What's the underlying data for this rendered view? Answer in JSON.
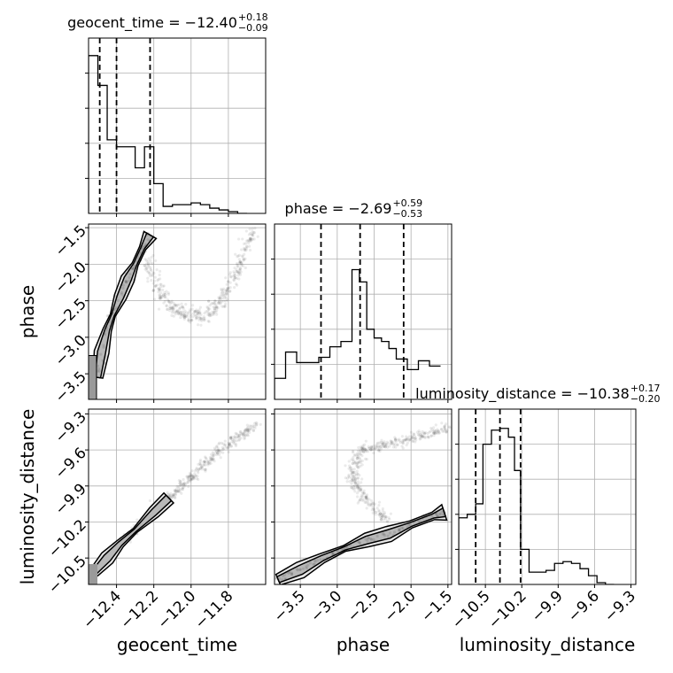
{
  "chart_data": {
    "type": "corner",
    "parameters": [
      "geocent_time",
      "phase",
      "luminosity_distance"
    ],
    "xlabels": [
      "geocent_time",
      "phase",
      "luminosity_distance"
    ],
    "ylabels": [
      "",
      "phase",
      "luminosity_distance"
    ],
    "titles": [
      {
        "main": "geocent_time = −12.40",
        "sup": "+0.18",
        "sub": "−0.09"
      },
      {
        "main": "phase = −2.69",
        "sup": "+0.59",
        "sub": "−0.53"
      },
      {
        "main": "luminosity_distance = −10.38",
        "sup": "+0.17",
        "sub": "−0.20"
      }
    ],
    "ranges": [
      [
        -12.55,
        -11.6
      ],
      [
        -3.85,
        -1.45
      ],
      [
        -10.72,
        -9.26
      ]
    ],
    "ticks": [
      {
        "values": [
          -12.4,
          -12.2,
          -12.0,
          -11.8
        ],
        "labels": [
          "−12.4",
          "−12.2",
          "−12.0",
          "−11.8"
        ]
      },
      {
        "values": [
          -3.5,
          -3.0,
          -2.5,
          -2.0,
          -1.5
        ],
        "labels": [
          "−3.5",
          "−3.0",
          "−2.5",
          "−2.0",
          "−1.5"
        ]
      },
      {
        "values": [
          -10.5,
          -10.2,
          -9.9,
          -9.6,
          -9.3
        ],
        "labels": [
          "−10.5",
          "−10.2",
          "−9.9",
          "−9.6",
          "−9.3"
        ]
      }
    ],
    "quantiles": [
      [
        -12.49,
        -12.4,
        -12.22
      ],
      [
        -3.22,
        -2.69,
        -2.1
      ],
      [
        -10.58,
        -10.38,
        -10.21
      ]
    ],
    "histograms": [
      {
        "edges": [
          -12.55,
          -12.5,
          -12.45,
          -12.4,
          -12.35,
          -12.3,
          -12.25,
          -12.2,
          -12.15,
          -12.1,
          -12.05,
          -12.0,
          -11.95,
          -11.9,
          -11.85,
          -11.8,
          -11.75,
          -11.7
        ],
        "counts": [
          0.9,
          0.73,
          0.42,
          0.38,
          0.38,
          0.26,
          0.38,
          0.17,
          0.04,
          0.05,
          0.05,
          0.06,
          0.05,
          0.03,
          0.02,
          0.01,
          0.0
        ]
      },
      {
        "edges": [
          -3.85,
          -3.7,
          -3.55,
          -3.4,
          -3.25,
          -3.1,
          -2.95,
          -2.8,
          -2.7,
          -2.6,
          -2.5,
          -2.4,
          -2.3,
          -2.2,
          -2.05,
          -1.9,
          -1.75,
          -1.6
        ],
        "counts": [
          0.12,
          0.27,
          0.21,
          0.21,
          0.24,
          0.3,
          0.33,
          0.74,
          0.67,
          0.4,
          0.35,
          0.33,
          0.29,
          0.23,
          0.17,
          0.22,
          0.19
        ]
      },
      {
        "edges": [
          -10.72,
          -10.65,
          -10.58,
          -10.52,
          -10.45,
          -10.38,
          -10.31,
          -10.26,
          -10.21,
          -10.14,
          -10.07,
          -10.0,
          -9.93,
          -9.86,
          -9.79,
          -9.72,
          -9.65,
          -9.58,
          -9.51,
          -9.44
        ],
        "counts": [
          0.38,
          0.4,
          0.46,
          0.8,
          0.88,
          0.89,
          0.84,
          0.65,
          0.2,
          0.07,
          0.07,
          0.08,
          0.12,
          0.13,
          0.12,
          0.09,
          0.05,
          0.01,
          0.0
        ]
      }
    ],
    "scatter": {
      "phase_vs_geocent_time": {
        "arm": [
          [
            -12.5,
            -3.55
          ],
          [
            -12.48,
            -3.2
          ],
          [
            -12.45,
            -2.9
          ],
          [
            -12.42,
            -2.7
          ],
          [
            -12.38,
            -2.45
          ],
          [
            -12.34,
            -2.2
          ],
          [
            -12.3,
            -2.0
          ],
          [
            -12.26,
            -1.78
          ],
          [
            -12.22,
            -1.6
          ]
        ],
        "curve": [
          [
            -12.23,
            -1.95
          ],
          [
            -12.2,
            -2.2
          ],
          [
            -12.16,
            -2.4
          ],
          [
            -12.12,
            -2.55
          ],
          [
            -12.08,
            -2.62
          ],
          [
            -12.02,
            -2.7
          ],
          [
            -11.96,
            -2.72
          ],
          [
            -11.9,
            -2.68
          ],
          [
            -11.85,
            -2.55
          ],
          [
            -11.8,
            -2.35
          ],
          [
            -11.75,
            -2.05
          ],
          [
            -11.7,
            -1.75
          ],
          [
            -11.66,
            -1.5
          ]
        ]
      },
      "luminosity_distance_vs_geocent_time": {
        "curve": [
          [
            -12.52,
            -10.62
          ],
          [
            -12.45,
            -10.5
          ],
          [
            -12.38,
            -10.38
          ],
          [
            -12.3,
            -10.27
          ],
          [
            -12.2,
            -10.12
          ],
          [
            -12.12,
            -10.0
          ],
          [
            -12.05,
            -9.9
          ],
          [
            -11.96,
            -9.76
          ],
          [
            -11.88,
            -9.64
          ],
          [
            -11.8,
            -9.55
          ],
          [
            -11.72,
            -9.47
          ],
          [
            -11.64,
            -9.38
          ]
        ]
      },
      "luminosity_distance_vs_phase": {
        "band": [
          [
            -3.8,
            -10.68
          ],
          [
            -3.5,
            -10.6
          ],
          [
            -3.2,
            -10.5
          ],
          [
            -2.9,
            -10.42
          ],
          [
            -2.6,
            -10.35
          ],
          [
            -2.3,
            -10.3
          ],
          [
            -2.0,
            -10.22
          ],
          [
            -1.7,
            -10.15
          ],
          [
            -1.55,
            -10.12
          ]
        ],
        "loop": [
          [
            -2.3,
            -10.2
          ],
          [
            -2.55,
            -10.05
          ],
          [
            -2.75,
            -9.9
          ],
          [
            -2.78,
            -9.75
          ],
          [
            -2.7,
            -9.62
          ],
          [
            -2.45,
            -9.56
          ],
          [
            -2.1,
            -9.52
          ],
          [
            -1.8,
            -9.47
          ],
          [
            -1.5,
            -9.4
          ]
        ]
      }
    }
  }
}
